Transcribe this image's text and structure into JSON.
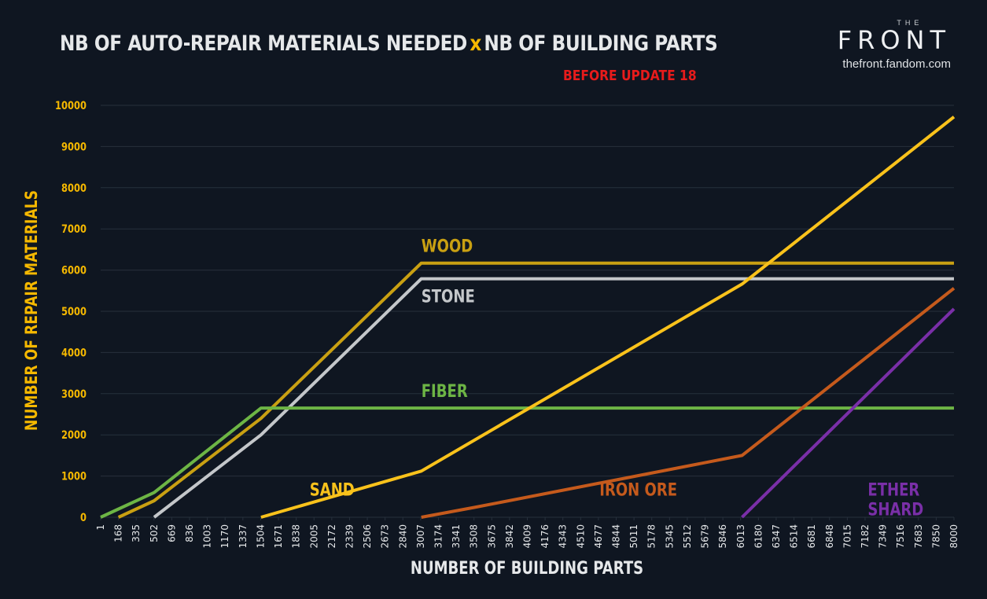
{
  "header": {
    "title_part1": "NB OF AUTO-REPAIR MATERIALS NEEDED",
    "title_x": "x",
    "title_part2": "NB OF BUILDING PARTS",
    "subtitle": "BEFORE UPDATE 18"
  },
  "brand": {
    "the": "THE",
    "name": "FRONT",
    "url": "thefront.fandom.com"
  },
  "colors": {
    "background": "#0f1621",
    "grid": "#27303c",
    "axis_text": "#f5b800",
    "tick_x_text": "#e6e8ea"
  },
  "chart_data": {
    "type": "line",
    "title": "NB OF AUTO-REPAIR MATERIALS NEEDED x NB OF BUILDING PARTS",
    "subtitle": "BEFORE UPDATE 18",
    "xlabel": "NUMBER OF BUILDING PARTS",
    "ylabel": "NUMBER OF REPAIR MATERIALS",
    "x_ticks": [
      "1",
      "168",
      "335",
      "502",
      "669",
      "836",
      "1003",
      "1170",
      "1337",
      "1504",
      "1671",
      "1838",
      "2005",
      "2172",
      "2339",
      "2506",
      "2673",
      "2840",
      "3007",
      "3174",
      "3341",
      "3508",
      "3675",
      "3842",
      "4009",
      "4176",
      "4343",
      "4510",
      "4677",
      "4844",
      "5011",
      "5178",
      "5345",
      "5512",
      "5679",
      "5846",
      "6013",
      "6180",
      "6347",
      "6514",
      "6681",
      "6848",
      "7015",
      "7182",
      "7349",
      "7516",
      "7683",
      "7850",
      "8000"
    ],
    "y_ticks": [
      0,
      1000,
      2000,
      3000,
      4000,
      5000,
      6000,
      7000,
      8000,
      9000,
      10000
    ],
    "ylim": [
      0,
      10000
    ],
    "grid": true,
    "legend": "inline labels",
    "series": [
      {
        "name": "WOOD",
        "color": "#c9a012",
        "points": [
          [
            168,
            0
          ],
          [
            502,
            400
          ],
          [
            1504,
            2400
          ],
          [
            3007,
            6170
          ],
          [
            8000,
            6170
          ]
        ]
      },
      {
        "name": "STONE",
        "color": "#c4c7ca",
        "points": [
          [
            502,
            0
          ],
          [
            1504,
            2000
          ],
          [
            3007,
            5790
          ],
          [
            8000,
            5790
          ]
        ]
      },
      {
        "name": "FIBER",
        "color": "#6db545",
        "points": [
          [
            1,
            0
          ],
          [
            168,
            200
          ],
          [
            502,
            600
          ],
          [
            1504,
            2650
          ],
          [
            8000,
            2650
          ]
        ]
      },
      {
        "name": "SAND",
        "color": "#f9c21b",
        "points": [
          [
            1504,
            0
          ],
          [
            3007,
            1120
          ],
          [
            6013,
            5660
          ],
          [
            8000,
            9720
          ]
        ]
      },
      {
        "name": "IRON ORE",
        "color": "#c55a1c",
        "points": [
          [
            3007,
            0
          ],
          [
            3508,
            240
          ],
          [
            6013,
            1500
          ],
          [
            8000,
            5560
          ]
        ]
      },
      {
        "name": "ETHER SHARD",
        "color": "#7a2fa8",
        "points": [
          [
            6013,
            0
          ],
          [
            8000,
            5060
          ]
        ]
      }
    ],
    "labels": [
      {
        "text": "WOOD",
        "color": "#c9a012",
        "x": 3007,
        "y": 6170,
        "lines": [
          "WOOD"
        ]
      },
      {
        "text": "STONE",
        "color": "#c4c7ca",
        "x": 3007,
        "y": 5790,
        "lines": [
          "STONE"
        ]
      },
      {
        "text": "FIBER",
        "color": "#6db545",
        "x": 3007,
        "y": 2650,
        "lines": [
          "FIBER"
        ]
      },
      {
        "text": "SAND",
        "color": "#f9c21b",
        "x": 2506,
        "y": 1120,
        "lines": [
          "SAND"
        ]
      },
      {
        "text": "IRON ORE",
        "color": "#c55a1c",
        "x": 4677,
        "y": 1120,
        "lines": [
          "IRON ORE"
        ]
      },
      {
        "text": "ETHER SHARD",
        "color": "#7a2fa8",
        "x": 7015,
        "y": 1120,
        "lines": [
          "ETHER",
          "SHARD"
        ]
      }
    ]
  }
}
